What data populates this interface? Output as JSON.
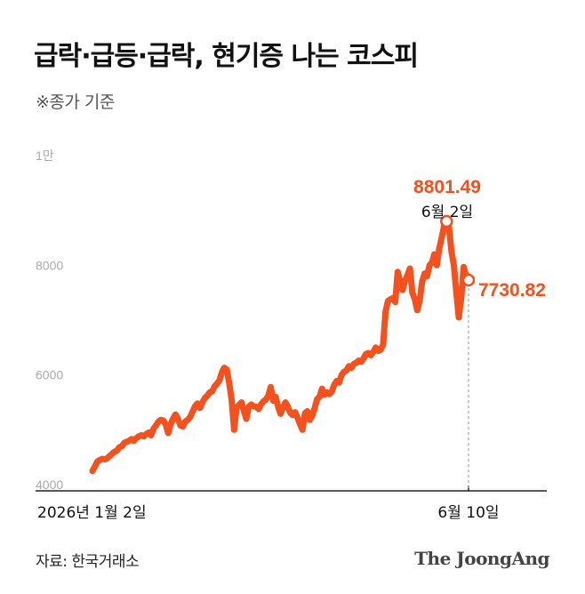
{
  "header": {
    "title": "급락·급등·급락, 현기증 나는 코스피",
    "subtitle": "※종가 기준"
  },
  "footer": {
    "source": "자료: 한국거래소",
    "brand": "The JoongAng"
  },
  "colors": {
    "series": "#f4511e",
    "axis": "#222222",
    "tick_label": "#aaaaaa",
    "annotation_text": "#111111"
  },
  "chart_data": {
    "type": "line",
    "title": "급락·급등·급락, 현기증 나는 코스피",
    "subtitle": "※종가 기준",
    "xlabel": "",
    "ylabel": "",
    "ylim": [
      4000,
      10000
    ],
    "yticks": [
      {
        "value": 4000,
        "label": "4000"
      },
      {
        "value": 6000,
        "label": "6000"
      },
      {
        "value": 8000,
        "label": "8000"
      },
      {
        "value": 10000,
        "label": "1만"
      }
    ],
    "x_ticks": [
      "2026년 1월 2일",
      "6월 10일"
    ],
    "grid": false,
    "series": [
      {
        "values": [
          4250,
          4330,
          4420,
          4450,
          4470,
          4460,
          4480,
          4520,
          4560,
          4600,
          4620,
          4680,
          4700,
          4760,
          4780,
          4800,
          4830,
          4800,
          4850,
          4880,
          4900,
          4880,
          4920,
          4950,
          4900,
          5020,
          5080,
          5150,
          5180,
          5170,
          5100,
          4940,
          5100,
          5200,
          5280,
          5200,
          5080,
          5060,
          5150,
          5180,
          5230,
          5330,
          5430,
          5480,
          5400,
          5500,
          5580,
          5620,
          5680,
          5700,
          5790,
          5840,
          5900,
          6050,
          6130,
          6100,
          5850,
          5540,
          5000,
          5400,
          5450,
          5500,
          5350,
          5200,
          5420,
          5460,
          5430,
          5420,
          5380,
          5460,
          5520,
          5550,
          5620,
          5780,
          5530,
          5600,
          5420,
          5290,
          5400,
          5500,
          5420,
          5310,
          5270,
          5320,
          5220,
          5100,
          5000,
          5300,
          5340,
          5180,
          5260,
          5400,
          5560,
          5600,
          5750,
          5640,
          5680,
          5650,
          5700,
          5820,
          5890,
          5860,
          6000,
          6060,
          6080,
          6160,
          6130,
          6200,
          6220,
          6260,
          6240,
          6300,
          6380,
          6400,
          6360,
          6420,
          6500,
          6440,
          6460,
          6550,
          7150,
          7350,
          7380,
          7400,
          7330,
          7880,
          7700,
          7550,
          7720,
          7820,
          7940,
          7500,
          7380,
          7180,
          7360,
          7700,
          7850,
          7800,
          8000,
          8050,
          8200,
          8000,
          8300,
          8500,
          8720,
          8801.49,
          8700,
          8250,
          8000,
          7500,
          7050,
          7400,
          7970,
          7800,
          7730.82
        ]
      }
    ],
    "annotations": [
      {
        "date": "6월 2일",
        "value": 8801.49,
        "value_label": "8801.49",
        "date_label": "6월 2일"
      },
      {
        "date": "6월 10일",
        "value": 7730.82,
        "value_label": "7730.82"
      }
    ]
  }
}
